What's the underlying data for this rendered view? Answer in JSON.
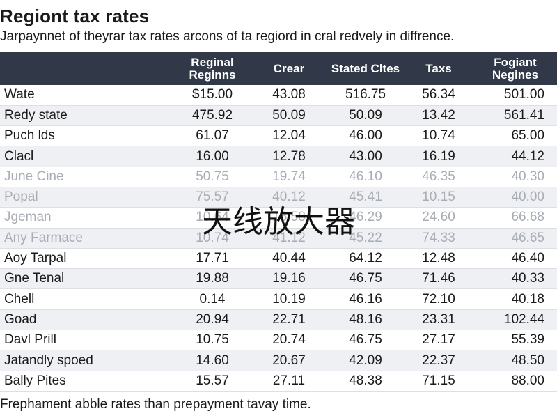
{
  "header": {
    "title": "Regiont tax rates",
    "subtitle": "Jarpaynnet of theyrar tax rates arcons of ta regiord in cral redvely in diffrence."
  },
  "table": {
    "columns": [
      "",
      "Reginal Reginns",
      "Crear",
      "Stated Cltes",
      "Taxs",
      "Fogiant Negines"
    ],
    "rows": [
      {
        "name": "Wate",
        "values": [
          "$15.00",
          "43.08",
          "516.75",
          "56.34",
          "501.00"
        ],
        "faded": false
      },
      {
        "name": "Redy state",
        "values": [
          "475.92",
          "50.09",
          "50.09",
          "13.42",
          "561.41"
        ],
        "faded": false
      },
      {
        "name": "Puch lds",
        "values": [
          "61.07",
          "12.04",
          "46.00",
          "10.74",
          "65.00"
        ],
        "faded": false
      },
      {
        "name": "Clacl",
        "values": [
          "16.00",
          "12.78",
          "43.00",
          "16.19",
          "44.12"
        ],
        "faded": false
      },
      {
        "name": "June Cine",
        "values": [
          "50.75",
          "19.74",
          "46.10",
          "46.35",
          "40.30"
        ],
        "faded": true
      },
      {
        "name": "Popal",
        "values": [
          "75.57",
          "40.12",
          "45.41",
          "10.15",
          "40.00"
        ],
        "faded": true
      },
      {
        "name": "Jgeman",
        "values": [
          "10.64",
          "16.58",
          "46.29",
          "24.60",
          "66.68"
        ],
        "faded": true
      },
      {
        "name": "Any Farmace",
        "values": [
          "10.74",
          "41.12",
          "45.22",
          "74.33",
          "46.65"
        ],
        "faded": true
      },
      {
        "name": "Aoy Tarpal",
        "values": [
          "17.71",
          "40.44",
          "64.12",
          "12.48",
          "46.40"
        ],
        "faded": false
      },
      {
        "name": "Gne Tenal",
        "values": [
          "19.88",
          "19.16",
          "46.75",
          "71.46",
          "40.33"
        ],
        "faded": false
      },
      {
        "name": "Chell",
        "values": [
          "0.14",
          "10.19",
          "46.16",
          "72.10",
          "40.18"
        ],
        "faded": false
      },
      {
        "name": "Goad",
        "values": [
          "20.94",
          "22.71",
          "48.16",
          "23.31",
          "102.44"
        ],
        "faded": false
      },
      {
        "name": "Davl Prill",
        "values": [
          "10.75",
          "20.74",
          "46.75",
          "27.17",
          "55.39"
        ],
        "faded": false
      },
      {
        "name": "Jatandly spoed",
        "values": [
          "14.60",
          "20.67",
          "42.09",
          "22.37",
          "48.50"
        ],
        "faded": false
      },
      {
        "name": "Bally Pites",
        "values": [
          "15.57",
          "27.11",
          "48.38",
          "71.15",
          "88.00"
        ],
        "faded": false
      }
    ]
  },
  "overlay": {
    "text": "天线放大器"
  },
  "footer": {
    "note": "Frephament abble rates than prepayment tavay time."
  },
  "colors": {
    "header_bg": "#313847",
    "stripe_bg": "#eef0f3",
    "faded_text": "#a8acb4"
  }
}
